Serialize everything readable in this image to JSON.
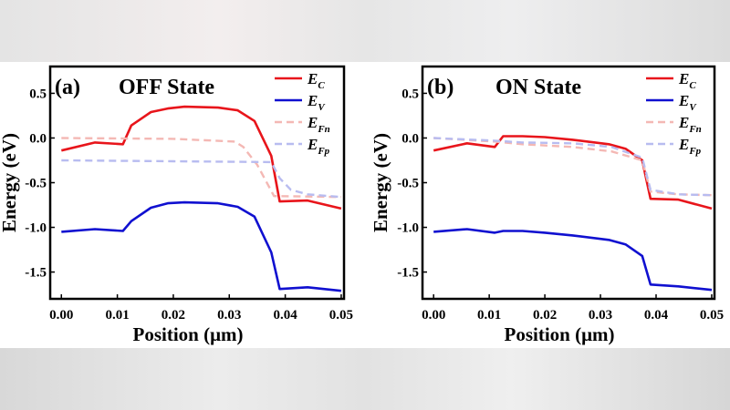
{
  "colors": {
    "Ec": "#e8151b",
    "Ev": "#1010d0",
    "EFn": "#f4b8b4",
    "EFp": "#b8bcf0"
  },
  "chart_data": [
    {
      "type": "line",
      "panel_label": "(a)",
      "title": "OFF State",
      "xlabel": "Position (μm)",
      "ylabel": "Energy (eV)",
      "xlim": [
        -0.002,
        0.0505
      ],
      "ylim": [
        -1.8,
        0.8
      ],
      "xticks": [
        "0.00",
        "0.01",
        "0.02",
        "0.03",
        "0.04",
        "0.05"
      ],
      "yticks": [
        "0.5",
        "0.0",
        "-0.5",
        "-1.0",
        "-1.5"
      ],
      "legend_position": "top-right",
      "grid": false,
      "series": [
        {
          "name": "E",
          "sub": "C",
          "key": "Ec",
          "style": "solid",
          "x": [
            0,
            0.006,
            0.011,
            0.0125,
            0.016,
            0.019,
            0.022,
            0.028,
            0.0315,
            0.0345,
            0.0375,
            0.039,
            0.044,
            0.05
          ],
          "y": [
            -0.14,
            -0.05,
            -0.07,
            0.14,
            0.29,
            0.33,
            0.35,
            0.34,
            0.31,
            0.19,
            -0.2,
            -0.71,
            -0.7,
            -0.79
          ]
        },
        {
          "name": "E",
          "sub": "V",
          "key": "Ev",
          "style": "solid",
          "x": [
            0,
            0.006,
            0.011,
            0.0125,
            0.016,
            0.019,
            0.022,
            0.028,
            0.0315,
            0.0345,
            0.0375,
            0.039,
            0.044,
            0.05
          ],
          "y": [
            -1.05,
            -1.02,
            -1.04,
            -0.93,
            -0.78,
            -0.73,
            -0.72,
            -0.73,
            -0.77,
            -0.88,
            -1.28,
            -1.69,
            -1.67,
            -1.71
          ]
        },
        {
          "name": "E",
          "sub": "Fn",
          "key": "EFn",
          "style": "dashed",
          "x": [
            0,
            0.02,
            0.031,
            0.0325,
            0.035,
            0.038,
            0.05
          ],
          "y": [
            0,
            -0.01,
            -0.04,
            -0.1,
            -0.3,
            -0.65,
            -0.66
          ]
        },
        {
          "name": "E",
          "sub": "Fp",
          "key": "EFp",
          "style": "dashed",
          "x": [
            0,
            0.02,
            0.0375,
            0.039,
            0.041,
            0.044,
            0.05
          ],
          "y": [
            -0.25,
            -0.26,
            -0.27,
            -0.45,
            -0.58,
            -0.63,
            -0.66
          ]
        }
      ]
    },
    {
      "type": "line",
      "panel_label": "(b)",
      "title": "ON State",
      "xlabel": "Position (μm)",
      "ylabel": "Energy (eV)",
      "xlim": [
        -0.002,
        0.0505
      ],
      "ylim": [
        -1.8,
        0.8
      ],
      "xticks": [
        "0.00",
        "0.01",
        "0.02",
        "0.03",
        "0.04",
        "0.05"
      ],
      "yticks": [
        "0.5",
        "0.0",
        "-0.5",
        "-1.0",
        "-1.5"
      ],
      "legend_position": "top-right",
      "grid": false,
      "series": [
        {
          "name": "E",
          "sub": "C",
          "key": "Ec",
          "style": "solid",
          "x": [
            0,
            0.006,
            0.011,
            0.0125,
            0.016,
            0.02,
            0.025,
            0.0315,
            0.0345,
            0.0375,
            0.039,
            0.044,
            0.05
          ],
          "y": [
            -0.14,
            -0.06,
            -0.1,
            0.02,
            0.02,
            0.01,
            -0.02,
            -0.07,
            -0.12,
            -0.25,
            -0.68,
            -0.69,
            -0.79
          ]
        },
        {
          "name": "E",
          "sub": "V",
          "key": "Ev",
          "style": "solid",
          "x": [
            0,
            0.006,
            0.011,
            0.0125,
            0.016,
            0.02,
            0.025,
            0.0315,
            0.0345,
            0.0375,
            0.039,
            0.044,
            0.05
          ],
          "y": [
            -1.05,
            -1.02,
            -1.06,
            -1.04,
            -1.04,
            -1.06,
            -1.09,
            -1.14,
            -1.19,
            -1.32,
            -1.64,
            -1.66,
            -1.7
          ]
        },
        {
          "name": "E",
          "sub": "Fn",
          "key": "EFn",
          "style": "dashed",
          "x": [
            0,
            0.011,
            0.016,
            0.025,
            0.032,
            0.0375,
            0.039,
            0.044,
            0.05
          ],
          "y": [
            0,
            -0.04,
            -0.07,
            -0.1,
            -0.15,
            -0.25,
            -0.6,
            -0.63,
            -0.64
          ]
        },
        {
          "name": "E",
          "sub": "Fp",
          "key": "EFp",
          "style": "dashed",
          "x": [
            0,
            0.011,
            0.016,
            0.025,
            0.032,
            0.0375,
            0.039,
            0.044,
            0.05
          ],
          "y": [
            0,
            -0.03,
            -0.05,
            -0.06,
            -0.1,
            -0.22,
            -0.58,
            -0.63,
            -0.64
          ]
        }
      ]
    }
  ]
}
